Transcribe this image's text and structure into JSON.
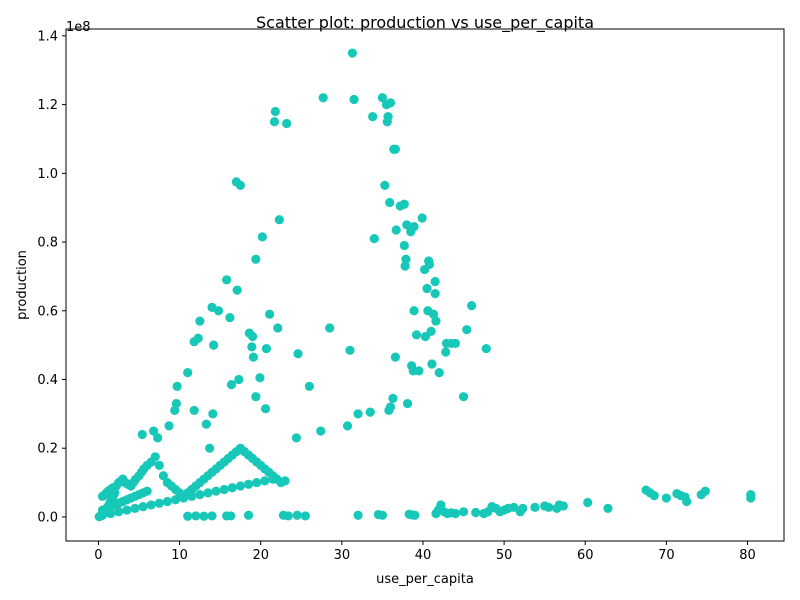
{
  "chart_data": {
    "type": "scatter",
    "title": "Scatter plot: production vs use_per_capita",
    "xlabel": "use_per_capita",
    "ylabel": "production",
    "y_offset_label": "1e8",
    "xlim": [
      -4,
      84.5
    ],
    "ylim": [
      -0.07,
      1.42
    ],
    "y_scale_factor": 100000000,
    "x_ticks": [
      0,
      10,
      20,
      30,
      40,
      50,
      60,
      70,
      80
    ],
    "y_ticks": [
      0.0,
      0.2,
      0.4,
      0.6,
      0.8,
      1.0,
      1.2,
      1.4
    ],
    "x_tick_labels": [
      "0",
      "10",
      "20",
      "30",
      "40",
      "50",
      "60",
      "70",
      "80"
    ],
    "y_tick_labels": [
      "0.0",
      "0.2",
      "0.4",
      "0.6",
      "0.8",
      "1.0",
      "1.2",
      "1.4"
    ],
    "grid": false,
    "marker_color": "#17c8b8",
    "points": [
      [
        0.1,
        0.001
      ],
      [
        0.2,
        0.002
      ],
      [
        0.3,
        0.003
      ],
      [
        0.4,
        0.004
      ],
      [
        0.5,
        0.006
      ],
      [
        0.6,
        0.008
      ],
      [
        0.7,
        0.01
      ],
      [
        0.8,
        0.012
      ],
      [
        0.9,
        0.015
      ],
      [
        1.0,
        0.02
      ],
      [
        1.1,
        0.025
      ],
      [
        1.2,
        0.03
      ],
      [
        1.3,
        0.035
      ],
      [
        1.4,
        0.04
      ],
      [
        1.5,
        0.045
      ],
      [
        1.6,
        0.05
      ],
      [
        1.7,
        0.055
      ],
      [
        1.8,
        0.06
      ],
      [
        1.9,
        0.065
      ],
      [
        2.0,
        0.07
      ],
      [
        0.5,
        0.06
      ],
      [
        0.8,
        0.065
      ],
      [
        1.0,
        0.07
      ],
      [
        1.2,
        0.075
      ],
      [
        1.5,
        0.08
      ],
      [
        1.8,
        0.085
      ],
      [
        2.2,
        0.09
      ],
      [
        2.5,
        0.1
      ],
      [
        2.8,
        0.105
      ],
      [
        3.0,
        0.11
      ],
      [
        3.3,
        0.1
      ],
      [
        3.6,
        0.095
      ],
      [
        4.0,
        0.09
      ],
      [
        4.3,
        0.1
      ],
      [
        4.6,
        0.11
      ],
      [
        5.0,
        0.12
      ],
      [
        5.3,
        0.13
      ],
      [
        5.6,
        0.14
      ],
      [
        6.0,
        0.15
      ],
      [
        6.5,
        0.16
      ],
      [
        7.0,
        0.175
      ],
      [
        7.5,
        0.15
      ],
      [
        8.0,
        0.12
      ],
      [
        8.5,
        0.1
      ],
      [
        9.0,
        0.09
      ],
      [
        9.5,
        0.08
      ],
      [
        10.0,
        0.07
      ],
      [
        10.5,
        0.06
      ],
      [
        11.0,
        0.07
      ],
      [
        11.5,
        0.08
      ],
      [
        12.0,
        0.09
      ],
      [
        12.5,
        0.1
      ],
      [
        13.0,
        0.11
      ],
      [
        13.5,
        0.12
      ],
      [
        14.0,
        0.13
      ],
      [
        14.5,
        0.14
      ],
      [
        15.0,
        0.15
      ],
      [
        15.5,
        0.16
      ],
      [
        16.0,
        0.17
      ],
      [
        16.5,
        0.18
      ],
      [
        17.0,
        0.19
      ],
      [
        17.5,
        0.2
      ],
      [
        18.0,
        0.19
      ],
      [
        18.5,
        0.18
      ],
      [
        19.0,
        0.17
      ],
      [
        19.5,
        0.16
      ],
      [
        20.0,
        0.15
      ],
      [
        20.5,
        0.14
      ],
      [
        21.0,
        0.13
      ],
      [
        21.5,
        0.12
      ],
      [
        22.0,
        0.11
      ],
      [
        22.5,
        0.1
      ],
      [
        23.0,
        0.105
      ],
      [
        0.5,
        0.02
      ],
      [
        1.0,
        0.025
      ],
      [
        1.5,
        0.03
      ],
      [
        2.0,
        0.035
      ],
      [
        2.5,
        0.04
      ],
      [
        3.0,
        0.045
      ],
      [
        3.5,
        0.05
      ],
      [
        4.0,
        0.055
      ],
      [
        4.5,
        0.06
      ],
      [
        5.0,
        0.065
      ],
      [
        5.5,
        0.07
      ],
      [
        6.0,
        0.075
      ],
      [
        1.5,
        0.01
      ],
      [
        2.5,
        0.015
      ],
      [
        3.5,
        0.02
      ],
      [
        4.5,
        0.025
      ],
      [
        5.5,
        0.03
      ],
      [
        6.5,
        0.035
      ],
      [
        7.5,
        0.04
      ],
      [
        8.5,
        0.045
      ],
      [
        9.5,
        0.05
      ],
      [
        10.5,
        0.055
      ],
      [
        11.5,
        0.06
      ],
      [
        12.5,
        0.065
      ],
      [
        13.5,
        0.07
      ],
      [
        14.5,
        0.075
      ],
      [
        15.5,
        0.08
      ],
      [
        16.5,
        0.085
      ],
      [
        17.5,
        0.09
      ],
      [
        18.5,
        0.095
      ],
      [
        19.5,
        0.1
      ],
      [
        20.5,
        0.105
      ],
      [
        21.5,
        0.11
      ],
      [
        5.4,
        0.24
      ],
      [
        6.8,
        0.25
      ],
      [
        7.3,
        0.23
      ],
      [
        8.7,
        0.265
      ],
      [
        9.4,
        0.31
      ],
      [
        9.6,
        0.33
      ],
      [
        9.7,
        0.38
      ],
      [
        11.0,
        0.42
      ],
      [
        11.8,
        0.31
      ],
      [
        11.8,
        0.51
      ],
      [
        12.3,
        0.52
      ],
      [
        12.5,
        0.57
      ],
      [
        13.3,
        0.27
      ],
      [
        13.7,
        0.2
      ],
      [
        14.0,
        0.61
      ],
      [
        14.1,
        0.3
      ],
      [
        14.2,
        0.5
      ],
      [
        14.8,
        0.6
      ],
      [
        15.8,
        0.69
      ],
      [
        16.2,
        0.58
      ],
      [
        16.4,
        0.385
      ],
      [
        17.1,
        0.66
      ],
      [
        17.3,
        0.4
      ],
      [
        17.0,
        0.975
      ],
      [
        17.5,
        0.965
      ],
      [
        18.6,
        0.535
      ],
      [
        18.9,
        0.495
      ],
      [
        19.0,
        0.525
      ],
      [
        19.1,
        0.465
      ],
      [
        19.4,
        0.75
      ],
      [
        19.4,
        0.35
      ],
      [
        19.9,
        0.405
      ],
      [
        20.2,
        0.815
      ],
      [
        20.7,
        0.49
      ],
      [
        20.6,
        0.315
      ],
      [
        21.1,
        0.59
      ],
      [
        21.7,
        1.15
      ],
      [
        21.8,
        1.18
      ],
      [
        22.1,
        0.55
      ],
      [
        22.3,
        0.865
      ],
      [
        23.2,
        1.145
      ],
      [
        24.4,
        0.23
      ],
      [
        24.6,
        0.475
      ],
      [
        26.0,
        0.38
      ],
      [
        27.4,
        0.25
      ],
      [
        27.7,
        1.22
      ],
      [
        28.5,
        0.55
      ],
      [
        30.7,
        0.265
      ],
      [
        31.0,
        0.485
      ],
      [
        31.3,
        1.35
      ],
      [
        31.5,
        1.215
      ],
      [
        32.0,
        0.3
      ],
      [
        33.5,
        0.305
      ],
      [
        33.8,
        1.165
      ],
      [
        34.0,
        0.81
      ],
      [
        35.0,
        1.22
      ],
      [
        35.3,
        0.965
      ],
      [
        35.5,
        1.2
      ],
      [
        35.6,
        1.15
      ],
      [
        35.7,
        1.165
      ],
      [
        35.8,
        0.31
      ],
      [
        35.9,
        0.915
      ],
      [
        36.0,
        1.205
      ],
      [
        36.0,
        0.32
      ],
      [
        36.3,
        0.345
      ],
      [
        36.4,
        1.07
      ],
      [
        36.6,
        1.07
      ],
      [
        36.6,
        0.465
      ],
      [
        36.7,
        0.835
      ],
      [
        37.2,
        0.905
      ],
      [
        37.7,
        0.91
      ],
      [
        37.7,
        0.79
      ],
      [
        37.8,
        0.73
      ],
      [
        37.9,
        0.75
      ],
      [
        38.0,
        0.85
      ],
      [
        38.1,
        0.33
      ],
      [
        38.5,
        0.83
      ],
      [
        38.6,
        0.44
      ],
      [
        38.9,
        0.845
      ],
      [
        38.9,
        0.6
      ],
      [
        38.8,
        0.425
      ],
      [
        39.2,
        0.53
      ],
      [
        39.5,
        0.425
      ],
      [
        39.9,
        0.87
      ],
      [
        40.2,
        0.72
      ],
      [
        40.3,
        0.525
      ],
      [
        40.5,
        0.665
      ],
      [
        40.6,
        0.6
      ],
      [
        40.7,
        0.745
      ],
      [
        40.8,
        0.735
      ],
      [
        41.0,
        0.54
      ],
      [
        41.1,
        0.445
      ],
      [
        41.3,
        0.59
      ],
      [
        41.5,
        0.685
      ],
      [
        41.5,
        0.65
      ],
      [
        41.6,
        0.57
      ],
      [
        42.0,
        0.42
      ],
      [
        42.8,
        0.48
      ],
      [
        42.9,
        0.505
      ],
      [
        43.5,
        0.505
      ],
      [
        44.0,
        0.505
      ],
      [
        45.0,
        0.35
      ],
      [
        45.4,
        0.545
      ],
      [
        46.0,
        0.615
      ],
      [
        47.8,
        0.49
      ],
      [
        11.0,
        0.002
      ],
      [
        12.0,
        0.003
      ],
      [
        13.0,
        0.002
      ],
      [
        14.0,
        0.003
      ],
      [
        15.8,
        0.003
      ],
      [
        16.3,
        0.003
      ],
      [
        18.5,
        0.005
      ],
      [
        22.8,
        0.005
      ],
      [
        23.4,
        0.003
      ],
      [
        24.5,
        0.005
      ],
      [
        25.5,
        0.003
      ],
      [
        32.0,
        0.005
      ],
      [
        34.5,
        0.007
      ],
      [
        35.0,
        0.005
      ],
      [
        38.3,
        0.008
      ],
      [
        38.6,
        0.006
      ],
      [
        39.0,
        0.005
      ],
      [
        41.6,
        0.01
      ],
      [
        41.9,
        0.02
      ],
      [
        42.2,
        0.035
      ],
      [
        42.6,
        0.015
      ],
      [
        43.0,
        0.01
      ],
      [
        43.5,
        0.012
      ],
      [
        44.0,
        0.01
      ],
      [
        45.0,
        0.015
      ],
      [
        46.5,
        0.013
      ],
      [
        47.5,
        0.01
      ],
      [
        48.0,
        0.015
      ],
      [
        48.5,
        0.03
      ],
      [
        49.0,
        0.025
      ],
      [
        49.5,
        0.015
      ],
      [
        50.0,
        0.02
      ],
      [
        50.5,
        0.025
      ],
      [
        51.2,
        0.028
      ],
      [
        52.0,
        0.015
      ],
      [
        52.3,
        0.025
      ],
      [
        53.8,
        0.028
      ],
      [
        55.0,
        0.032
      ],
      [
        55.5,
        0.028
      ],
      [
        56.5,
        0.025
      ],
      [
        56.8,
        0.035
      ],
      [
        57.3,
        0.032
      ],
      [
        60.3,
        0.042
      ],
      [
        62.8,
        0.025
      ],
      [
        67.5,
        0.078
      ],
      [
        68.0,
        0.07
      ],
      [
        68.5,
        0.062
      ],
      [
        70.0,
        0.055
      ],
      [
        71.3,
        0.068
      ],
      [
        71.8,
        0.062
      ],
      [
        72.3,
        0.058
      ],
      [
        72.5,
        0.045
      ],
      [
        74.3,
        0.065
      ],
      [
        74.8,
        0.075
      ],
      [
        80.4,
        0.065
      ],
      [
        80.4,
        0.055
      ]
    ]
  }
}
